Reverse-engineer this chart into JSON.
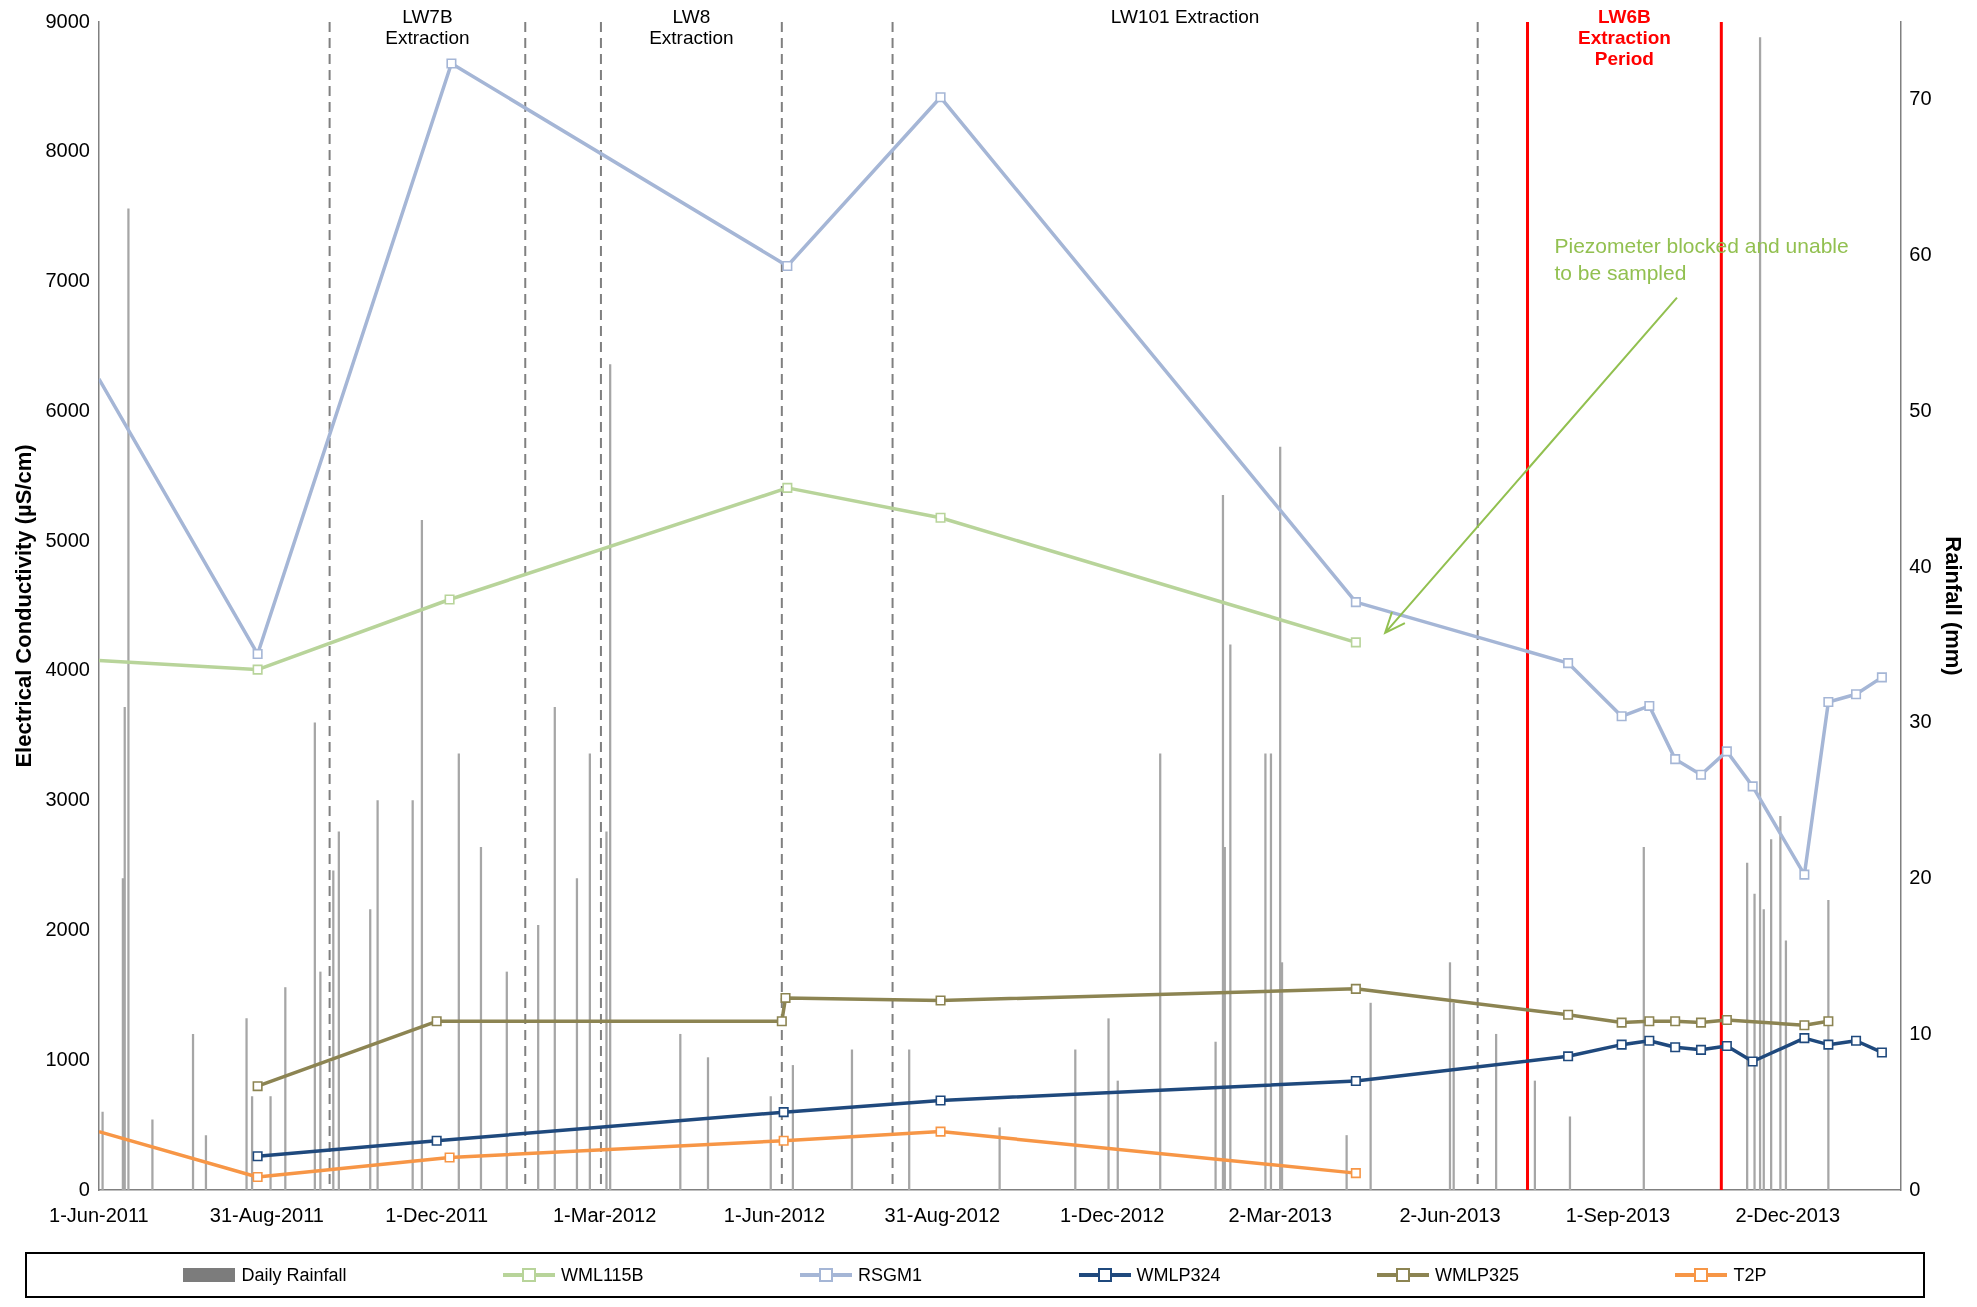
{
  "chart_data": {
    "type": "line",
    "ylabel": "Electrical Conductivity (µS/cm)",
    "y2label": "Rainfall (mm)",
    "xlim": [
      "2011-06-01",
      "2014-02-01"
    ],
    "xticks": [
      {
        "value": "2011-06-01",
        "label": "1-Jun-2011"
      },
      {
        "value": "2011-08-31",
        "label": "31-Aug-2011"
      },
      {
        "value": "2011-12-01",
        "label": "1-Dec-2011"
      },
      {
        "value": "2012-03-01",
        "label": "1-Mar-2012"
      },
      {
        "value": "2012-06-01",
        "label": "1-Jun-2012"
      },
      {
        "value": "2012-08-31",
        "label": "31-Aug-2012"
      },
      {
        "value": "2012-12-01",
        "label": "1-Dec-2012"
      },
      {
        "value": "2013-03-02",
        "label": "2-Mar-2013"
      },
      {
        "value": "2013-06-02",
        "label": "2-Jun-2013"
      },
      {
        "value": "2013-09-01",
        "label": "1-Sep-2013"
      },
      {
        "value": "2013-12-02",
        "label": "2-Dec-2013"
      }
    ],
    "ylim": [
      0,
      9000
    ],
    "yticks": [
      0,
      1000,
      2000,
      3000,
      4000,
      5000,
      6000,
      7000,
      8000,
      9000
    ],
    "y2lim": [
      0,
      75
    ],
    "y2ticks": [
      0,
      10,
      20,
      30,
      40,
      50,
      60,
      70
    ],
    "marker": "square",
    "legend": "bottom",
    "series": [
      {
        "name": "Daily Rainfall",
        "type": "bar",
        "axis": "y2",
        "color": "#a6a6a6",
        "x": [
          "2011-06-03",
          "2011-06-14",
          "2011-06-15",
          "2011-06-17",
          "2011-06-30",
          "2011-07-22",
          "2011-07-29",
          "2011-08-20",
          "2011-08-23",
          "2011-09-02",
          "2011-09-10",
          "2011-09-26",
          "2011-09-29",
          "2011-10-06",
          "2011-10-09",
          "2011-10-26",
          "2011-10-30",
          "2011-11-18",
          "2011-11-23",
          "2011-12-13",
          "2011-12-25",
          "2012-01-08",
          "2012-01-25",
          "2012-02-03",
          "2012-02-15",
          "2012-02-22",
          "2012-03-02",
          "2012-03-04",
          "2012-04-11",
          "2012-04-26",
          "2012-05-30",
          "2012-06-11",
          "2012-07-13",
          "2012-08-13",
          "2012-10-01",
          "2012-11-11",
          "2012-11-29",
          "2012-12-04",
          "2012-12-27",
          "2013-01-26",
          "2013-01-30",
          "2013-01-31",
          "2013-02-03",
          "2013-02-22",
          "2013-02-25",
          "2013-03-02",
          "2013-03-03",
          "2013-04-07",
          "2013-04-20",
          "2013-06-02",
          "2013-06-04",
          "2013-06-27",
          "2013-07-18",
          "2013-08-06",
          "2013-09-15",
          "2013-11-10",
          "2013-11-14",
          "2013-11-17",
          "2013-11-19",
          "2013-11-23",
          "2013-11-28",
          "2013-12-01",
          "2013-12-24"
        ],
        "values": [
          5,
          20,
          31,
          63,
          4.5,
          10,
          3.5,
          11,
          6,
          6,
          13,
          30,
          14,
          20.5,
          23,
          18,
          25,
          25,
          43,
          28,
          22,
          14,
          17,
          31,
          20,
          28,
          23,
          53,
          10,
          8.5,
          6,
          8,
          9,
          9,
          4,
          9,
          11,
          7,
          28,
          9.5,
          44.6,
          22,
          35,
          28,
          28,
          47.7,
          14.6,
          3.5,
          12,
          14.6,
          12,
          10,
          7,
          4.7,
          22,
          21,
          19,
          74,
          18,
          22.5,
          24,
          16,
          18.6
        ]
      },
      {
        "name": "WML115B",
        "color": "#b8d49a",
        "x": [
          "2011-06-01",
          "2011-08-26",
          "2011-12-08",
          "2012-06-08",
          "2012-08-30",
          "2013-04-12"
        ],
        "values": [
          4080,
          4010,
          4550,
          5410,
          5180,
          4220
        ]
      },
      {
        "name": "RSGM1",
        "color": "#a5b6d6",
        "x": [
          "2011-06-01",
          "2011-08-26",
          "2011-12-09",
          "2012-06-08",
          "2012-08-30",
          "2013-04-12",
          "2013-08-05",
          "2013-09-03",
          "2013-09-18",
          "2013-10-02",
          "2013-10-16",
          "2013-10-30",
          "2013-11-13",
          "2013-12-11",
          "2013-12-24",
          "2014-01-08",
          "2014-01-22"
        ],
        "values": [
          6250,
          4130,
          8680,
          7120,
          8420,
          4530,
          4060,
          3650,
          3730,
          3320,
          3200,
          3380,
          3110,
          2430,
          3760,
          3820,
          3950
        ]
      },
      {
        "name": "WMLP324",
        "color": "#1f497d",
        "x": [
          "2011-08-26",
          "2011-12-01",
          "2012-06-06",
          "2012-08-30",
          "2013-04-12",
          "2013-08-05",
          "2013-09-03",
          "2013-09-18",
          "2013-10-02",
          "2013-10-16",
          "2013-10-30",
          "2013-11-13",
          "2013-12-11",
          "2013-12-24",
          "2014-01-08",
          "2014-01-22"
        ],
        "values": [
          260,
          380,
          600,
          690,
          840,
          1030,
          1120,
          1150,
          1100,
          1080,
          1110,
          990,
          1170,
          1120,
          1150,
          1060
        ]
      },
      {
        "name": "WMLP325",
        "color": "#8c8452",
        "x": [
          "2011-08-26",
          "2011-12-01",
          "2012-06-05",
          "2012-06-07",
          "2012-08-30",
          "2013-04-12",
          "2013-08-05",
          "2013-09-03",
          "2013-09-18",
          "2013-10-02",
          "2013-10-16",
          "2013-10-30",
          "2013-12-11",
          "2013-12-24"
        ],
        "values": [
          800,
          1300,
          1300,
          1480,
          1460,
          1550,
          1350,
          1290,
          1300,
          1300,
          1290,
          1310,
          1270,
          1300
        ]
      },
      {
        "name": "T2P",
        "color": "#f79646",
        "x": [
          "2011-06-01",
          "2011-08-26",
          "2011-12-08",
          "2012-06-06",
          "2012-08-30",
          "2013-04-12"
        ],
        "values": [
          450,
          100,
          250,
          380,
          450,
          130
        ]
      }
    ],
    "ref_lines": [
      {
        "axis": "x",
        "value": "2011-10-04",
        "color": "#808080",
        "line_style": "dashed"
      },
      {
        "axis": "x",
        "value": "2012-01-18",
        "color": "#808080",
        "line_style": "dashed"
      },
      {
        "axis": "x",
        "value": "2012-02-28",
        "color": "#808080",
        "line_style": "dashed"
      },
      {
        "axis": "x",
        "value": "2012-06-05",
        "color": "#808080",
        "line_style": "dashed"
      },
      {
        "axis": "x",
        "value": "2012-08-04",
        "color": "#808080",
        "line_style": "dashed"
      },
      {
        "axis": "x",
        "value": "2013-06-17",
        "color": "#808080",
        "line_style": "dashed"
      },
      {
        "axis": "x",
        "value": "2013-07-14",
        "color": "#ff0000",
        "line_style": "solid"
      },
      {
        "axis": "x",
        "value": "2013-10-27",
        "color": "#ff0000",
        "line_style": "solid"
      }
    ],
    "annotations": [
      "LW7B\nExtraction",
      "LW8\nExtraction",
      "LW101 Extraction",
      "LW6B\nExtraction\nPeriod",
      "Piezometer blocked and unable\nto be sampled"
    ]
  }
}
